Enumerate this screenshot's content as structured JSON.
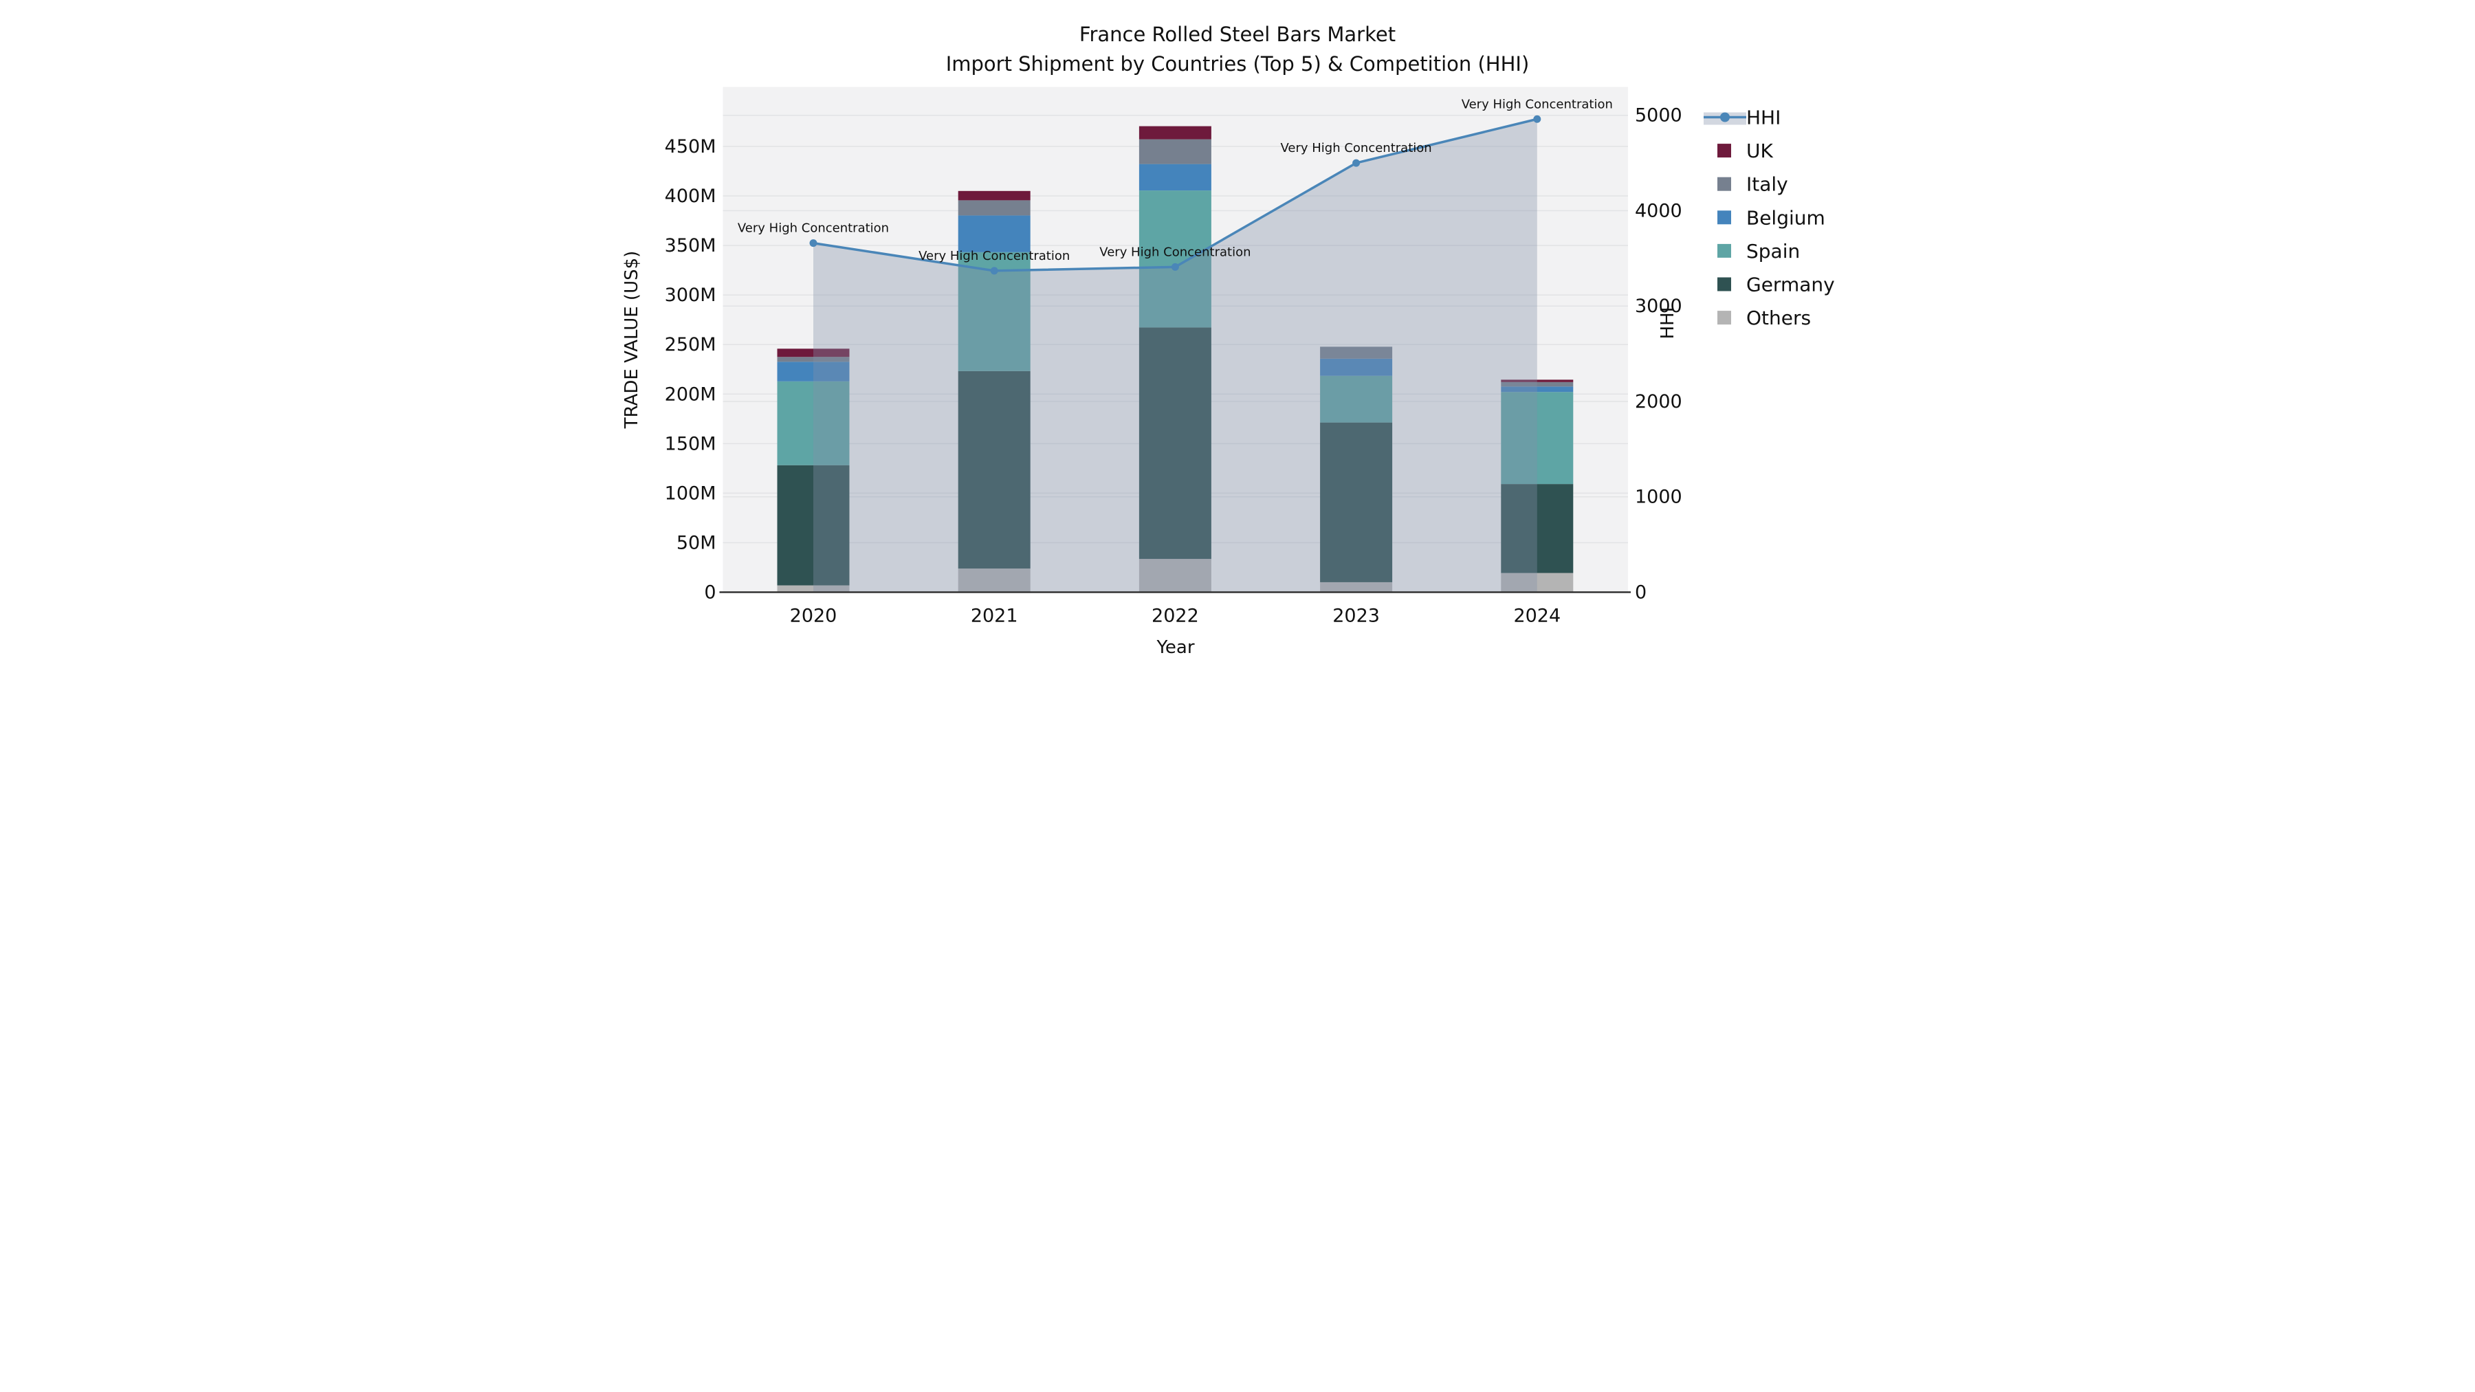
{
  "chart_data": {
    "type": "bar",
    "subtype": "stacked-bar-with-line-overlay",
    "title": "France Rolled Steel Bars Market",
    "subtitle": "Import Shipment by Countries (Top 5) & Competition (HHI)",
    "xlabel": "Year",
    "ylabel_left": "TRADE VALUE (US$)",
    "ylabel_right": "HHI",
    "units": "millions of US$",
    "categories": [
      "2020",
      "2021",
      "2022",
      "2023",
      "2024"
    ],
    "stack_order_bottom_to_top": [
      "Others",
      "Germany",
      "Spain",
      "Belgium",
      "Italy",
      "UK"
    ],
    "series": [
      {
        "name": "Others",
        "color": "#b4b4b4",
        "values": [
          6.9,
          23.9,
          33.6,
          10.1,
          19.4
        ]
      },
      {
        "name": "Germany",
        "color": "#2f5252",
        "values": [
          121.3,
          199.3,
          233.6,
          161.2,
          89.8
        ]
      },
      {
        "name": "Spain",
        "color": "#5ea5a5",
        "values": [
          84.6,
          120.0,
          138.3,
          47.1,
          92.9
        ]
      },
      {
        "name": "Belgium",
        "color": "#4484bc",
        "values": [
          19.8,
          37.1,
          26.7,
          17.3,
          5.5
        ]
      },
      {
        "name": "Italy",
        "color": "#76808f",
        "values": [
          4.9,
          15.3,
          25.0,
          12.1,
          4.5
        ]
      },
      {
        "name": "UK",
        "color": "#6e1a3c",
        "values": [
          8.3,
          9.4,
          13.2,
          0,
          2.4
        ]
      }
    ],
    "bar_totals": [
      245.8,
      405.0,
      470.4,
      247.8,
      214.5
    ],
    "overlay_line": {
      "name": "HHI",
      "color": "#4a86b8",
      "area_fill": "rgba(130,143,168,0.36)",
      "values": [
        3660,
        3370,
        3410,
        4500,
        4960
      ]
    },
    "annotations": [
      {
        "x": "2020",
        "label": "Very High Concentration"
      },
      {
        "x": "2021",
        "label": "Very High Concentration"
      },
      {
        "x": "2022",
        "label": "Very High Concentration"
      },
      {
        "x": "2023",
        "label": "Very High Concentration"
      },
      {
        "x": "2024",
        "label": "Very High Concentration"
      }
    ],
    "axes": {
      "left": {
        "tick_values": [
          0,
          50,
          100,
          150,
          200,
          250,
          300,
          350,
          400,
          450
        ],
        "tick_labels": [
          "0",
          "50M",
          "100M",
          "150M",
          "200M",
          "250M",
          "300M",
          "350M",
          "400M",
          "450M"
        ],
        "max": 510
      },
      "right": {
        "tick_values": [
          0,
          1000,
          2000,
          3000,
          4000,
          5000
        ],
        "tick_labels": [
          "0",
          "1000",
          "2000",
          "3000",
          "4000",
          "5000"
        ],
        "max": 5297
      },
      "grid": true,
      "plot_background": "#f2f2f3",
      "gridline_color": "#e2e3e5",
      "axis_line_color": "#333333"
    },
    "legend": {
      "position": "right-outside",
      "entries": [
        {
          "label": "HHI",
          "type": "line",
          "color": "#4a86b8",
          "band_color": "rgba(130,143,168,0.36)"
        },
        {
          "label": "UK",
          "type": "patch",
          "color": "#6e1a3c"
        },
        {
          "label": "Italy",
          "type": "patch",
          "color": "#76808f"
        },
        {
          "label": "Belgium",
          "type": "patch",
          "color": "#4484bc"
        },
        {
          "label": "Spain",
          "type": "patch",
          "color": "#5ea5a5"
        },
        {
          "label": "Germany",
          "type": "patch",
          "color": "#2f5252"
        },
        {
          "label": "Others",
          "type": "patch",
          "color": "#b4b4b4"
        }
      ]
    }
  }
}
